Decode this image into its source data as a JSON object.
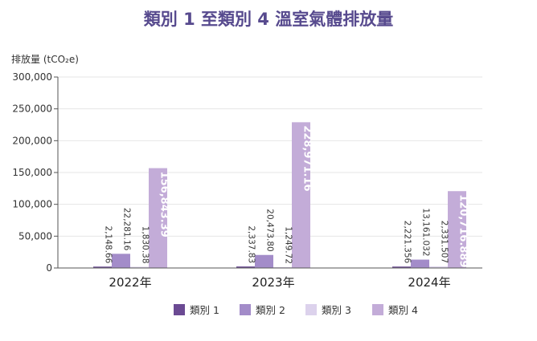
{
  "chart_data": {
    "type": "bar",
    "title": "類別 1 至類別 4 溫室氣體排放量",
    "ylabel": "排放量 (tCO₂e)",
    "ylim": [
      0,
      300000
    ],
    "yticks": [
      0,
      50000,
      100000,
      150000,
      200000,
      250000,
      300000
    ],
    "ytick_labels": [
      "0",
      "50,000",
      "100,000",
      "150,000",
      "200,000",
      "250,000",
      "300,000"
    ],
    "grid": true,
    "legend_position": "bottom",
    "categories": [
      "2022年",
      "2023年",
      "2024年"
    ],
    "series": [
      {
        "name": "類別 1",
        "color": "#6b4a93",
        "values": [
          2148.66,
          2337.83,
          2221.356
        ],
        "labels": [
          "2,148.66",
          "2,337.83",
          "2,221.356"
        ]
      },
      {
        "name": "類別 2",
        "color": "#a38cc9",
        "values": [
          22281.16,
          20473.8,
          13161.032
        ],
        "labels": [
          "22,281.16",
          "20,473.80",
          "13,161.032"
        ]
      },
      {
        "name": "類別 3",
        "color": "#dcd2ec",
        "values": [
          1830.38,
          1249.72,
          2331.507
        ],
        "labels": [
          "1,830.38",
          "1,249.72",
          "2,331.507"
        ]
      },
      {
        "name": "類別 4",
        "color": "#c3acd8",
        "values": [
          156843.39,
          228971.16,
          120716.889
        ],
        "labels": [
          "156,843.39",
          "228,971.16",
          "120,716.889"
        ]
      }
    ]
  }
}
